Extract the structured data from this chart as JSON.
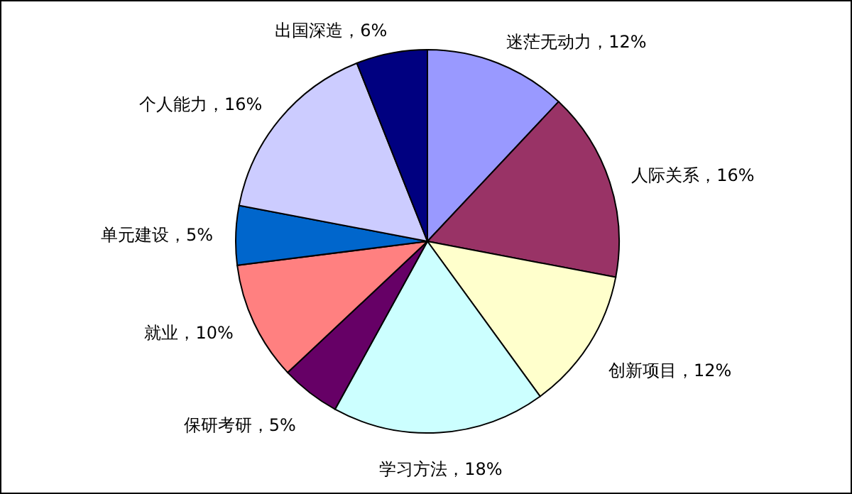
{
  "chart_data": {
    "type": "pie",
    "categories": [
      "迷茫无动力",
      "人际关系",
      "创新项目",
      "学习方法",
      "保研考研",
      "就业",
      "单元建设",
      "个人能力",
      "出国深造"
    ],
    "values": [
      12,
      16,
      12,
      18,
      5,
      10,
      5,
      16,
      6
    ],
    "value_labels": [
      "12%",
      "16%",
      "12%",
      "18%",
      "5%",
      "10%",
      "5%",
      "16%",
      "6%"
    ],
    "colors": [
      "#9999ff",
      "#993366",
      "#ffffcc",
      "#ccffff",
      "#660066",
      "#ff8080",
      "#0066cc",
      "#ccccff",
      "#000080"
    ]
  }
}
